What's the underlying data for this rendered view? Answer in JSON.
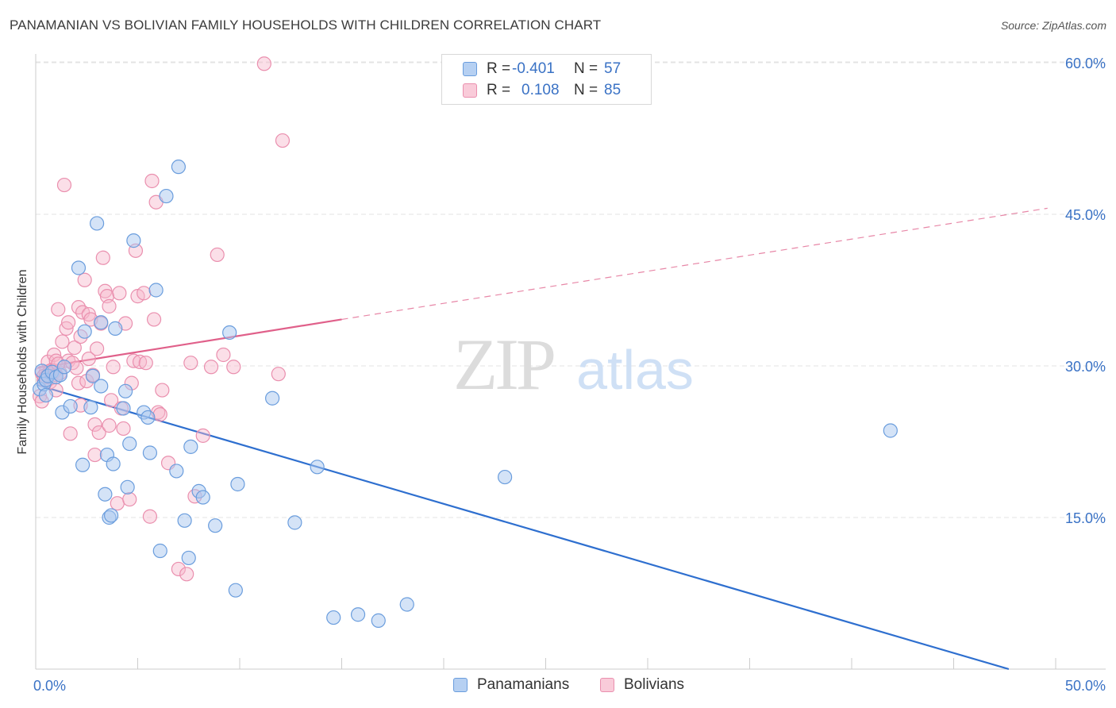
{
  "title": "PANAMANIAN VS BOLIVIAN FAMILY HOUSEHOLDS WITH CHILDREN CORRELATION CHART",
  "source": "Source: ZipAtlas.com",
  "watermark": {
    "zip": "ZIP",
    "atlas": "atlas"
  },
  "colors": {
    "blue_fill": "#a9c8f0",
    "blue_stroke": "#6a9ddd",
    "blue_line": "#2e6fcf",
    "pink_fill": "#f6b9cc",
    "pink_stroke": "#ea8fae",
    "pink_line": "#e0608a",
    "axis_text": "#3a72c5",
    "grid": "#e3e3e3"
  },
  "legend_top": [
    {
      "label": "R =",
      "r": "-0.401",
      "n_label": "N =",
      "n": "57",
      "series": "Panamanians"
    },
    {
      "label": "R =",
      "r": "0.108",
      "n_label": "N =",
      "n": "85",
      "series": "Bolivians"
    }
  ],
  "legend_bottom": [
    "Panamanians",
    "Bolivians"
  ],
  "chart_data": {
    "type": "scatter",
    "title": "PANAMANIAN VS BOLIVIAN FAMILY HOUSEHOLDS WITH CHILDREN CORRELATION CHART",
    "xlabel": "",
    "ylabel": "Family Households with Children",
    "xlim": [
      0,
      50
    ],
    "ylim": [
      0,
      61.5
    ],
    "x_tick_labels": {
      "min": "0.0%",
      "max": "50.0%"
    },
    "y_ticks": [
      15,
      30,
      45,
      60
    ],
    "y_tick_labels": [
      "15.0%",
      "30.0%",
      "45.0%",
      "60.0%"
    ],
    "grid": true,
    "series": [
      {
        "name": "Panamanians",
        "r": -0.401,
        "n": 57,
        "trend": {
          "x0": 0.1,
          "y0": 28.1,
          "x1": 47.7,
          "y1": 0.0,
          "dashed_to": null
        },
        "points": [
          [
            0.2,
            27.7
          ],
          [
            0.3,
            29.5
          ],
          [
            0.4,
            28.2
          ],
          [
            0.5,
            28.6
          ],
          [
            0.6,
            29.0
          ],
          [
            0.5,
            27.1
          ],
          [
            0.8,
            29.4
          ],
          [
            1.0,
            28.9
          ],
          [
            1.2,
            29.1
          ],
          [
            1.4,
            29.9
          ],
          [
            1.3,
            25.4
          ],
          [
            1.7,
            26.0
          ],
          [
            2.1,
            39.7
          ],
          [
            2.3,
            20.2
          ],
          [
            2.4,
            33.4
          ],
          [
            2.7,
            25.9
          ],
          [
            2.8,
            29.0
          ],
          [
            3.0,
            44.1
          ],
          [
            3.2,
            34.3
          ],
          [
            3.2,
            28.0
          ],
          [
            3.4,
            17.3
          ],
          [
            3.5,
            21.2
          ],
          [
            3.6,
            15.0
          ],
          [
            3.7,
            15.2
          ],
          [
            3.8,
            20.3
          ],
          [
            3.9,
            33.7
          ],
          [
            4.3,
            25.8
          ],
          [
            4.4,
            27.5
          ],
          [
            4.5,
            18.0
          ],
          [
            4.6,
            22.3
          ],
          [
            4.8,
            42.4
          ],
          [
            5.3,
            25.4
          ],
          [
            5.5,
            24.9
          ],
          [
            5.6,
            21.4
          ],
          [
            5.9,
            37.5
          ],
          [
            6.1,
            11.7
          ],
          [
            6.4,
            46.8
          ],
          [
            6.9,
            19.6
          ],
          [
            7.0,
            49.7
          ],
          [
            7.3,
            14.7
          ],
          [
            7.5,
            11.0
          ],
          [
            7.6,
            22.0
          ],
          [
            8.0,
            17.6
          ],
          [
            8.2,
            17.0
          ],
          [
            8.8,
            14.2
          ],
          [
            9.5,
            33.3
          ],
          [
            9.8,
            7.8
          ],
          [
            9.9,
            18.3
          ],
          [
            11.6,
            26.8
          ],
          [
            12.7,
            14.5
          ],
          [
            13.8,
            20.0
          ],
          [
            14.6,
            5.1
          ],
          [
            15.8,
            5.4
          ],
          [
            16.8,
            4.8
          ],
          [
            18.2,
            6.4
          ],
          [
            23.0,
            19.0
          ],
          [
            41.9,
            23.6
          ]
        ]
      },
      {
        "name": "Bolivians",
        "r": 0.108,
        "n": 85,
        "trend": {
          "x0": 0.1,
          "y0": 29.8,
          "x1": 15.0,
          "y1": 34.6,
          "dashed_to": {
            "x": 49.6,
            "y": 45.6
          }
        },
        "points": [
          [
            0.2,
            27.0
          ],
          [
            0.3,
            26.5
          ],
          [
            0.4,
            28.6
          ],
          [
            0.5,
            29.4
          ],
          [
            0.6,
            30.4
          ],
          [
            0.6,
            29.1
          ],
          [
            0.7,
            28.4
          ],
          [
            0.8,
            29.6
          ],
          [
            0.9,
            31.1
          ],
          [
            1.0,
            30.5
          ],
          [
            1.0,
            27.6
          ],
          [
            1.1,
            35.6
          ],
          [
            1.2,
            29.3
          ],
          [
            1.3,
            32.4
          ],
          [
            1.4,
            47.9
          ],
          [
            1.5,
            33.7
          ],
          [
            1.6,
            34.3
          ],
          [
            1.6,
            30.5
          ],
          [
            1.7,
            23.3
          ],
          [
            1.8,
            30.3
          ],
          [
            1.9,
            31.8
          ],
          [
            2.0,
            29.8
          ],
          [
            2.1,
            35.8
          ],
          [
            2.1,
            28.3
          ],
          [
            2.2,
            32.9
          ],
          [
            2.3,
            35.3
          ],
          [
            2.4,
            38.5
          ],
          [
            2.5,
            28.5
          ],
          [
            2.6,
            35.1
          ],
          [
            2.6,
            30.7
          ],
          [
            2.7,
            34.6
          ],
          [
            2.8,
            29.1
          ],
          [
            2.9,
            24.2
          ],
          [
            2.9,
            21.2
          ],
          [
            3.0,
            31.7
          ],
          [
            3.1,
            23.4
          ],
          [
            3.2,
            34.2
          ],
          [
            3.3,
            40.7
          ],
          [
            3.4,
            37.4
          ],
          [
            3.5,
            36.9
          ],
          [
            3.6,
            35.9
          ],
          [
            3.7,
            26.6
          ],
          [
            3.8,
            29.9
          ],
          [
            4.0,
            16.4
          ],
          [
            4.1,
            37.2
          ],
          [
            4.2,
            25.8
          ],
          [
            4.3,
            23.8
          ],
          [
            4.4,
            34.2
          ],
          [
            4.6,
            16.8
          ],
          [
            4.7,
            28.3
          ],
          [
            4.8,
            30.5
          ],
          [
            4.9,
            41.4
          ],
          [
            5.0,
            36.9
          ],
          [
            5.1,
            30.4
          ],
          [
            5.3,
            37.2
          ],
          [
            5.6,
            15.1
          ],
          [
            5.7,
            48.3
          ],
          [
            5.8,
            34.6
          ],
          [
            5.9,
            46.2
          ],
          [
            6.0,
            25.4
          ],
          [
            6.1,
            25.2
          ],
          [
            6.2,
            27.6
          ],
          [
            6.5,
            20.4
          ],
          [
            7.0,
            9.9
          ],
          [
            7.4,
            9.4
          ],
          [
            7.6,
            30.3
          ],
          [
            7.8,
            17.1
          ],
          [
            8.2,
            23.1
          ],
          [
            8.6,
            29.9
          ],
          [
            8.9,
            41.0
          ],
          [
            9.2,
            31.1
          ],
          [
            9.7,
            29.9
          ],
          [
            11.2,
            59.9
          ],
          [
            11.9,
            29.2
          ],
          [
            12.1,
            52.3
          ],
          [
            0.3,
            29.3
          ],
          [
            0.4,
            29.0
          ],
          [
            0.5,
            28.9
          ],
          [
            0.7,
            29.5
          ],
          [
            0.9,
            29.4
          ],
          [
            1.0,
            29.1
          ],
          [
            1.1,
            30.2
          ],
          [
            3.6,
            24.1
          ],
          [
            5.4,
            30.3
          ],
          [
            2.2,
            26.1
          ]
        ]
      }
    ]
  }
}
